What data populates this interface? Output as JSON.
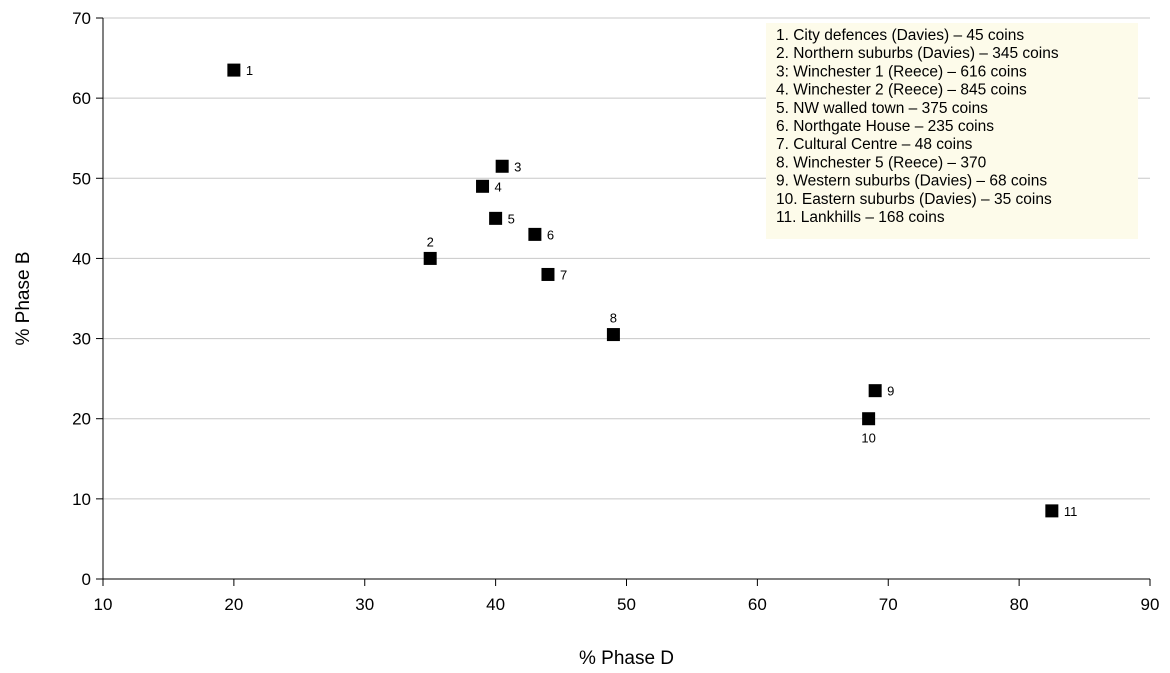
{
  "chart_data": {
    "type": "scatter",
    "title": "",
    "xlabel": "% Phase D",
    "ylabel": "% Phase B",
    "xlim": [
      10,
      90
    ],
    "ylim": [
      0,
      70
    ],
    "xticks": [
      "10",
      "20",
      "30",
      "40",
      "50",
      "60",
      "70",
      "80",
      "90"
    ],
    "yticks": [
      "0",
      "10",
      "20",
      "30",
      "40",
      "50",
      "60",
      "70"
    ],
    "grid": "horizontal",
    "legend_position": "top-right",
    "points": [
      {
        "label": "1",
        "x": 20,
        "y": 63.5,
        "label_pos": "right"
      },
      {
        "label": "2",
        "x": 35,
        "y": 40,
        "label_pos": "above"
      },
      {
        "label": "3",
        "x": 40.5,
        "y": 51.5,
        "label_pos": "right"
      },
      {
        "label": "4",
        "x": 39,
        "y": 49,
        "label_pos": "right"
      },
      {
        "label": "5",
        "x": 40,
        "y": 45,
        "label_pos": "right"
      },
      {
        "label": "6",
        "x": 43,
        "y": 43,
        "label_pos": "right"
      },
      {
        "label": "7",
        "x": 44,
        "y": 38,
        "label_pos": "right"
      },
      {
        "label": "8",
        "x": 49,
        "y": 30.5,
        "label_pos": "above"
      },
      {
        "label": "9",
        "x": 69,
        "y": 23.5,
        "label_pos": "right"
      },
      {
        "label": "10",
        "x": 68.5,
        "y": 20,
        "label_pos": "below"
      },
      {
        "label": "11",
        "x": 82.5,
        "y": 8.5,
        "label_pos": "right"
      }
    ],
    "legend": [
      "1. City defences (Davies) – 45 coins",
      "2. Northern suburbs (Davies) – 345 coins",
      "3: Winchester 1 (Reece) – 616 coins",
      "4. Winchester 2 (Reece) – 845 coins",
      "5. NW walled town – 375 coins",
      "6. Northgate House – 235 coins",
      "7. Cultural Centre – 48 coins",
      "8. Winchester 5 (Reece) – 370",
      "9. Western suburbs (Davies) – 68 coins",
      "10. Eastern suburbs (Davies) – 35 coins",
      "11. Lankhills – 168 coins"
    ],
    "colors": {
      "marker": "#000000",
      "grid": "#c8c8c8",
      "legend_bg": "#fdfbea"
    }
  }
}
